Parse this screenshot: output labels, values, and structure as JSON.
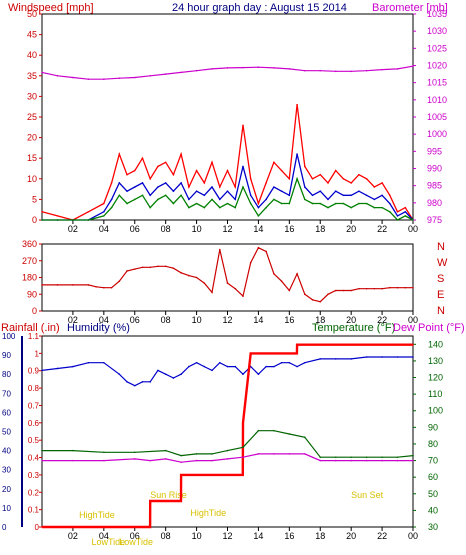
{
  "chart_data": [
    {
      "type": "line",
      "title": "24 hour graph day : August 15 2014",
      "left_axis_label": "Windspeed [mph]",
      "right_axis_label": "Barometer [mb]",
      "x_ticks": [
        "02",
        "04",
        "06",
        "08",
        "10",
        "12",
        "14",
        "16",
        "18",
        "20",
        "22",
        "00"
      ],
      "y_left_ticks": [
        "0",
        "5",
        "10",
        "15",
        "20",
        "25",
        "30",
        "35",
        "40",
        "45",
        "50"
      ],
      "y_left_range": [
        0,
        50
      ],
      "y_right_ticks": [
        "975",
        "980",
        "985",
        "990",
        "995",
        "1000",
        "1005",
        "1010",
        "1015",
        "1020",
        "1025",
        "1030",
        "1035"
      ],
      "y_right_range": [
        975,
        1035
      ],
      "colors": {
        "gust": "#ff0000",
        "avg": "#0000cc",
        "low": "#008000",
        "baro": "#cc00cc",
        "axis_left": "#cc0000",
        "axis_right": "#cc00cc",
        "title": "#000080"
      },
      "series": [
        {
          "name": "Barometer",
          "x": [
            0,
            1,
            2,
            3,
            4,
            5,
            6,
            7,
            8,
            9,
            10,
            11,
            12,
            13,
            14,
            15,
            16,
            17,
            18,
            19,
            20,
            21,
            22,
            23,
            24
          ],
          "values": [
            1018,
            1017,
            1016.5,
            1016,
            1016,
            1016.3,
            1016.5,
            1017,
            1017.5,
            1018,
            1018.5,
            1019,
            1019.3,
            1019.4,
            1019.5,
            1019.3,
            1019,
            1018.5,
            1018.5,
            1018.3,
            1018.3,
            1018.5,
            1018.8,
            1019,
            1019.8
          ]
        },
        {
          "name": "Windspeed gust",
          "x": [
            0,
            1,
            2,
            3,
            4,
            4.5,
            5,
            5.5,
            6,
            6.5,
            7,
            7.5,
            8,
            8.5,
            9,
            9.5,
            10,
            10.5,
            11,
            11.5,
            12,
            12.5,
            13,
            13.5,
            14,
            14.5,
            15,
            15.5,
            16,
            16.5,
            17,
            17.5,
            18,
            18.5,
            19,
            19.5,
            20,
            20.5,
            21,
            21.5,
            22,
            22.5,
            23,
            23.5,
            24
          ],
          "values": [
            2,
            1,
            0,
            2,
            4,
            9,
            16,
            11,
            12,
            15,
            10,
            13,
            14,
            11,
            16,
            8,
            12,
            9,
            14,
            8,
            12,
            8,
            23,
            10,
            4,
            9,
            14,
            12,
            10,
            28,
            13,
            10,
            11,
            9,
            12,
            10,
            9,
            11,
            10,
            8,
            9,
            6,
            2,
            3,
            0
          ]
        },
        {
          "name": "Windspeed avg",
          "x": [
            0,
            1,
            2,
            3,
            4,
            4.5,
            5,
            5.5,
            6,
            6.5,
            7,
            7.5,
            8,
            8.5,
            9,
            9.5,
            10,
            10.5,
            11,
            11.5,
            12,
            12.5,
            13,
            13.5,
            14,
            14.5,
            15,
            15.5,
            16,
            16.5,
            17,
            17.5,
            18,
            18.5,
            19,
            19.5,
            20,
            20.5,
            21,
            21.5,
            22,
            22.5,
            23,
            23.5,
            24
          ],
          "values": [
            0,
            0,
            0,
            0,
            2,
            5,
            9,
            7,
            8,
            9,
            6,
            8,
            9,
            7,
            9,
            5,
            7,
            6,
            8,
            5,
            7,
            5,
            13,
            6,
            3,
            5,
            8,
            7,
            6,
            16,
            8,
            6,
            7,
            5,
            7,
            6,
            6,
            7,
            6,
            5,
            6,
            4,
            1,
            2,
            0
          ]
        },
        {
          "name": "Windspeed low",
          "x": [
            0,
            1,
            2,
            3,
            4,
            4.5,
            5,
            5.5,
            6,
            6.5,
            7,
            7.5,
            8,
            8.5,
            9,
            9.5,
            10,
            10.5,
            11,
            11.5,
            12,
            12.5,
            13,
            13.5,
            14,
            14.5,
            15,
            15.5,
            16,
            16.5,
            17,
            17.5,
            18,
            18.5,
            19,
            19.5,
            20,
            20.5,
            21,
            21.5,
            22,
            22.5,
            23,
            23.5,
            24
          ],
          "values": [
            0,
            0,
            0,
            0,
            1,
            3,
            6,
            4,
            5,
            6,
            3,
            5,
            6,
            4,
            6,
            3,
            4,
            3,
            5,
            3,
            4,
            3,
            8,
            4,
            1,
            3,
            5,
            4,
            4,
            10,
            5,
            4,
            4,
            3,
            4,
            4,
            3,
            4,
            4,
            3,
            3,
            2,
            0,
            1,
            0
          ]
        }
      ]
    },
    {
      "type": "line",
      "title": "",
      "y_ticks": [
        "360",
        "270",
        "180",
        "90",
        "0"
      ],
      "y_range": [
        0,
        360
      ],
      "right_labels": [
        "N",
        "W",
        "S",
        "E",
        "N"
      ],
      "series": [
        {
          "name": "Wind direction",
          "x": [
            0,
            1,
            2,
            3,
            3.5,
            4,
            4.5,
            5,
            5.5,
            6,
            6.5,
            7,
            7.5,
            8,
            8.5,
            9,
            9.5,
            10,
            10.5,
            11,
            11.5,
            12,
            12.5,
            13,
            13.5,
            14,
            14.5,
            15,
            15.5,
            16,
            16.5,
            17,
            17.5,
            18,
            18.5,
            19,
            19.5,
            20,
            20.5,
            21,
            21.5,
            22,
            22.5,
            23,
            23.5,
            24
          ],
          "values": [
            140,
            140,
            140,
            140,
            130,
            125,
            125,
            160,
            215,
            225,
            235,
            235,
            240,
            240,
            230,
            205,
            190,
            180,
            150,
            100,
            330,
            150,
            120,
            80,
            260,
            340,
            320,
            200,
            160,
            110,
            200,
            90,
            60,
            50,
            90,
            110,
            110,
            110,
            120,
            120,
            120,
            120,
            125,
            125,
            125,
            125
          ]
        }
      ]
    },
    {
      "type": "line",
      "title": "",
      "labels": {
        "rain": "Rainfall (.in)",
        "humidity": "Humidity (%)",
        "temp": "Temperature (°F)",
        "dew": "Dew Point (°F)"
      },
      "y_left_ticks": [
        "0",
        "0.1",
        "0.2",
        "0.3",
        "0.4",
        "0.5",
        "0.6",
        "0.7",
        "0.8",
        "0.9",
        "1",
        "1.1"
      ],
      "y_left_range": [
        0,
        1.1
      ],
      "y_hum_ticks": [
        "0",
        "10",
        "20",
        "30",
        "40",
        "50",
        "60",
        "70",
        "80",
        "90",
        "100"
      ],
      "y_hum_range": [
        0,
        100
      ],
      "y_right_ticks": [
        "30",
        "40",
        "50",
        "60",
        "70",
        "80",
        "90",
        "100",
        "110",
        "120",
        "130",
        "140"
      ],
      "y_right_range": [
        30,
        145
      ],
      "annotations": [
        "HighTide",
        "LowTide",
        "HighTide",
        "LowTide",
        "Sun Rise",
        "Sun Set"
      ],
      "series": [
        {
          "name": "Humidity",
          "x": [
            0,
            1,
            2,
            3,
            4,
            5,
            5.5,
            6,
            6.5,
            7,
            7.5,
            8,
            8.5,
            9,
            9.5,
            10,
            10.5,
            11,
            11.5,
            12,
            12.5,
            13,
            13.5,
            14,
            14.5,
            15,
            15.5,
            16,
            16.5,
            17,
            18,
            19,
            20,
            21,
            22,
            23,
            24
          ],
          "values": [
            82,
            83,
            84,
            86,
            86,
            80,
            76,
            74,
            76,
            76,
            82,
            80,
            78,
            80,
            84,
            86,
            84,
            82,
            86,
            84,
            84,
            80,
            84,
            80,
            84,
            84,
            86,
            86,
            84,
            86,
            88,
            88,
            88,
            89,
            89,
            89,
            89
          ]
        },
        {
          "name": "Rainfall",
          "x": [
            0,
            6.99,
            7,
            8.99,
            9,
            12.99,
            13,
            13.5,
            16.49,
            16.5,
            24
          ],
          "values": [
            0,
            0,
            0.15,
            0.15,
            0.3,
            0.3,
            0.6,
            1.0,
            1.0,
            1.05,
            1.05
          ]
        },
        {
          "name": "Temperature",
          "x": [
            0,
            2,
            4,
            6,
            8,
            9,
            10,
            11,
            12,
            13,
            14,
            15,
            16,
            17,
            18,
            19,
            20,
            21,
            22,
            23,
            24
          ],
          "values": [
            76,
            76,
            75,
            75,
            76,
            73,
            74,
            74,
            76,
            78,
            88,
            88,
            86,
            84,
            72,
            72,
            72,
            72,
            72,
            72,
            73
          ]
        },
        {
          "name": "Dew Point",
          "x": [
            0,
            2,
            4,
            6,
            7,
            8,
            9,
            10,
            11,
            12,
            13,
            14,
            15,
            16,
            17,
            18,
            19,
            20,
            21,
            22,
            23,
            24
          ],
          "values": [
            70,
            70,
            70,
            71,
            70,
            71,
            69,
            70,
            70,
            71,
            72,
            74,
            74,
            74,
            74,
            70,
            70,
            70,
            70,
            70,
            70,
            70
          ]
        }
      ]
    }
  ]
}
